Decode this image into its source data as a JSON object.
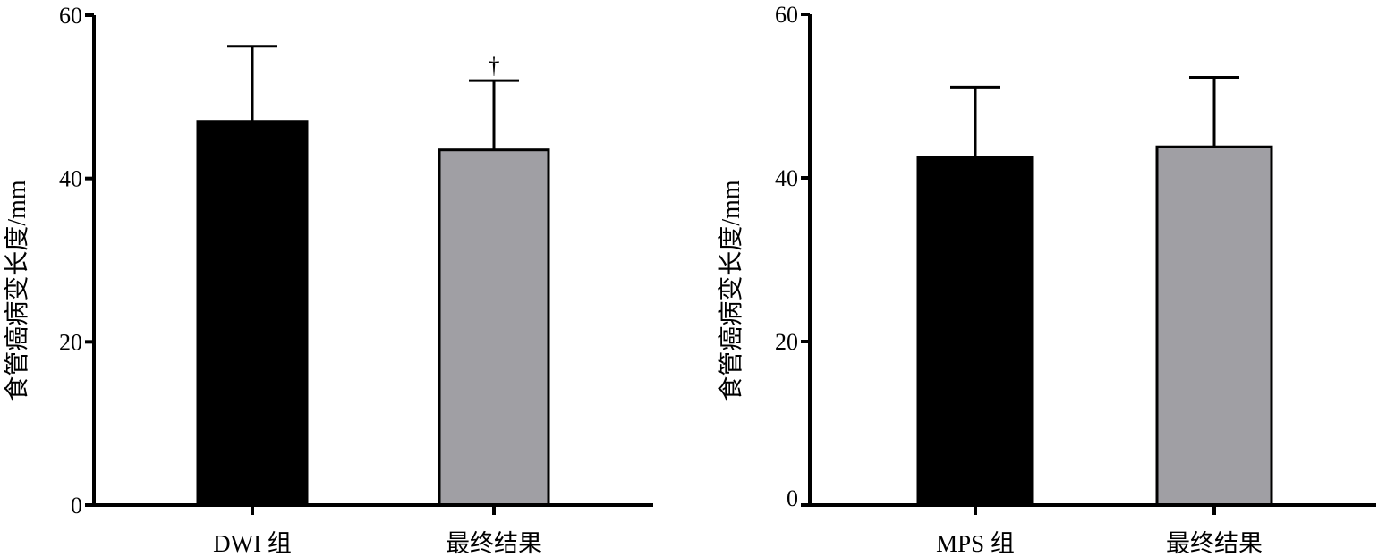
{
  "colors": {
    "series_a": "#000000",
    "series_b": "#a09fa4",
    "axis": "#000000"
  },
  "chart_data": [
    {
      "type": "bar",
      "categories": [
        "DWI 组",
        "最终结果"
      ],
      "values": [
        47.0,
        43.5
      ],
      "errors": [
        9.2,
        8.5
      ],
      "bar_colors": [
        "#000000",
        "#a09fa4"
      ],
      "annotations": [
        "",
        "†"
      ],
      "ylabel": "食管癌病变长度/mm",
      "xlabel": "",
      "ylim": [
        0,
        60
      ],
      "yticks": [
        "0",
        "20",
        "40",
        "60"
      ],
      "grid": false
    },
    {
      "type": "bar",
      "categories": [
        "MPS 组",
        "最终结果"
      ],
      "values": [
        42.5,
        43.8
      ],
      "errors": [
        8.6,
        8.5
      ],
      "bar_colors": [
        "#000000",
        "#a09fa4"
      ],
      "annotations": [
        "",
        ""
      ],
      "ylabel": "食管癌病变长度/mm",
      "xlabel": "",
      "ylim": [
        0,
        60
      ],
      "yticks": [
        "0",
        "20",
        "40",
        "60"
      ],
      "grid": false
    }
  ]
}
